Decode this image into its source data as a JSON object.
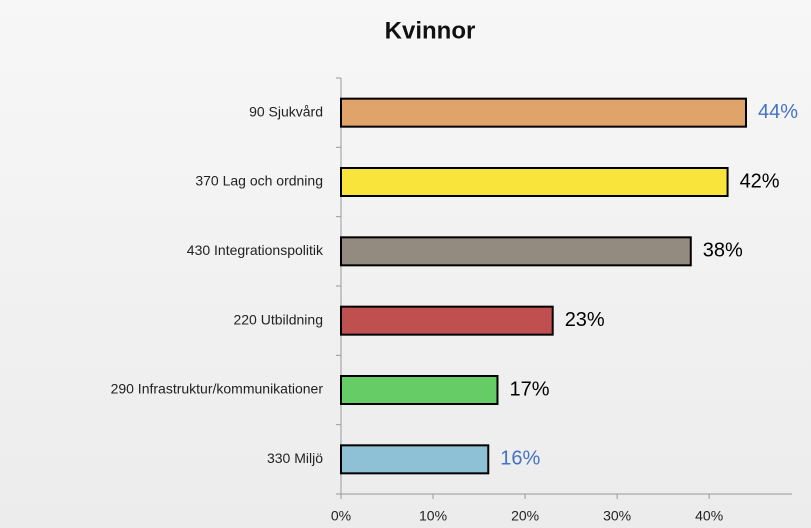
{
  "chart_data": {
    "type": "hbar",
    "title": "Kvinnor",
    "categories": [
      "90 Sjukvård",
      "370 Lag och ordning",
      "430 Integrationspolitik",
      "220 Utbildning",
      "290 Infrastruktur/kommunikationer",
      "330 Miljö"
    ],
    "values": [
      44,
      42,
      38,
      23,
      17,
      16
    ],
    "value_labels": [
      "44%",
      "42%",
      "38%",
      "23%",
      "17%",
      "16%"
    ],
    "colors": [
      "#e0a46a",
      "#f8e43a",
      "#938b80",
      "#c05050",
      "#66cc66",
      "#8fc1d6"
    ],
    "value_label_colors": [
      "#4472c4",
      "#000000",
      "#000000",
      "#000000",
      "#000000",
      "#4472c4"
    ],
    "xlim": [
      0,
      49
    ],
    "xticks": [
      {
        "value": 0,
        "label": "0%"
      },
      {
        "value": 10,
        "label": "10%"
      },
      {
        "value": 20,
        "label": "20%"
      },
      {
        "value": 30,
        "label": "30%"
      },
      {
        "value": 40,
        "label": "40%"
      }
    ]
  }
}
